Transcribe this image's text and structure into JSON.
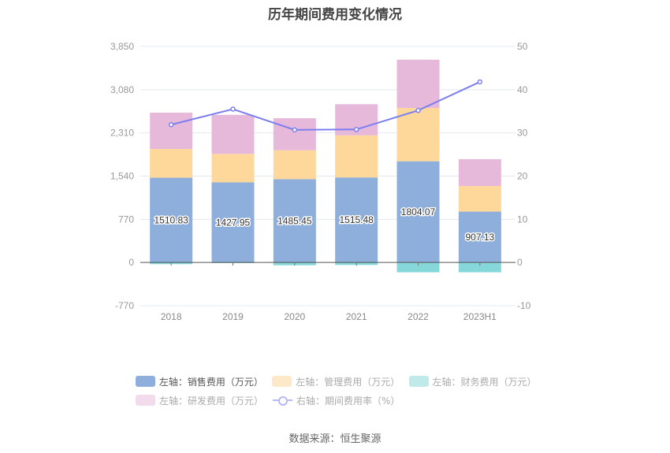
{
  "chart_data": {
    "type": "bar",
    "stacked": true,
    "title": "历年期间费用变化情况",
    "categories": [
      "2018",
      "2019",
      "2020",
      "2021",
      "2022",
      "2023H1"
    ],
    "left_axis": {
      "ticks": [
        3850,
        3080,
        2310,
        1540,
        770,
        0,
        -770
      ],
      "tick_labels": [
        "3,850",
        "3,080",
        "2,310",
        "1,540",
        "770",
        "0",
        "-770"
      ],
      "ylim": [
        -770,
        3850
      ]
    },
    "right_axis": {
      "ticks": [
        50,
        40,
        30,
        20,
        10,
        0,
        -10
      ],
      "tick_labels": [
        "50",
        "40",
        "30",
        "20",
        "10",
        "0",
        "-10"
      ],
      "ylim": [
        -10,
        50
      ]
    },
    "grid": true,
    "series": [
      {
        "name": "左轴：销售费用（万元）",
        "type": "bar",
        "axis": "left",
        "color": "#8eaedb",
        "values": [
          1510.83,
          1427.95,
          1485.45,
          1515.48,
          1804.07,
          907.13
        ],
        "data_labels": [
          "1510.83",
          "1427.95",
          "1485.45",
          "1515.48",
          "1804.07",
          "907.13"
        ]
      },
      {
        "name": "左轴：管理费用（万元）",
        "type": "bar",
        "axis": "left",
        "color": "#fed89a",
        "values": [
          512,
          507,
          514,
          751,
          950,
          456
        ]
      },
      {
        "name": "左轴：财务费用（万元）",
        "type": "bar",
        "axis": "left",
        "color": "#86d7da",
        "values": [
          -30,
          -10,
          -50,
          -45,
          -175,
          -175
        ]
      },
      {
        "name": "左轴：研发费用（万元）",
        "type": "bar",
        "axis": "left",
        "color": "#e6b8da",
        "values": [
          647,
          697,
          572,
          554,
          861,
          478
        ]
      },
      {
        "name": "右轴：期间费用率（%）",
        "type": "line",
        "axis": "right",
        "color": "#7b7ff0",
        "values": [
          31.9,
          35.5,
          30.7,
          30.8,
          35.2,
          41.8
        ]
      }
    ],
    "legend_position": "bottom"
  },
  "legend": {
    "items": [
      {
        "label": "左轴：销售费用（万元）",
        "color": "#8eaedb",
        "active": true
      },
      {
        "label": "左轴：管理费用（万元）",
        "color": "#fde9c8",
        "active": false
      },
      {
        "label": "左轴：财务费用（万元）",
        "color": "#c0e9ea",
        "active": false
      },
      {
        "label": "左轴：研发费用（万元）",
        "color": "#f2dcec",
        "active": false
      },
      {
        "label": "右轴：期间费用率（%）",
        "color": "#b7b9f7",
        "active": false
      }
    ]
  },
  "source": "数据来源：恒生聚源"
}
